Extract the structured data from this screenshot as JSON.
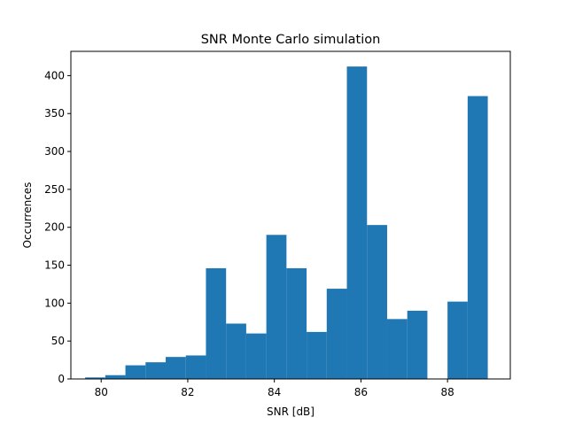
{
  "chart_data": {
    "type": "bar",
    "title": "SNR Monte Carlo simulation",
    "xlabel": "SNR [dB]",
    "ylabel": "Occurrences",
    "xlim": [
      79.3,
      89.45
    ],
    "ylim": [
      0,
      432
    ],
    "xticks": [
      80,
      82,
      84,
      86,
      88
    ],
    "yticks": [
      0,
      50,
      100,
      150,
      200,
      250,
      300,
      350,
      400
    ],
    "bin_edges": [
      79.63,
      80.095,
      80.56,
      81.025,
      81.49,
      81.955,
      82.42,
      82.885,
      83.35,
      83.815,
      84.28,
      84.745,
      85.21,
      85.675,
      86.14,
      86.605,
      87.07,
      87.535,
      88.0,
      88.465,
      88.93
    ],
    "values": [
      2,
      5,
      18,
      22,
      29,
      31,
      146,
      73,
      60,
      190,
      146,
      62,
      119,
      412,
      203,
      79,
      90,
      0,
      102,
      373
    ],
    "bar_color": "#1f77b4",
    "grid": false
  }
}
